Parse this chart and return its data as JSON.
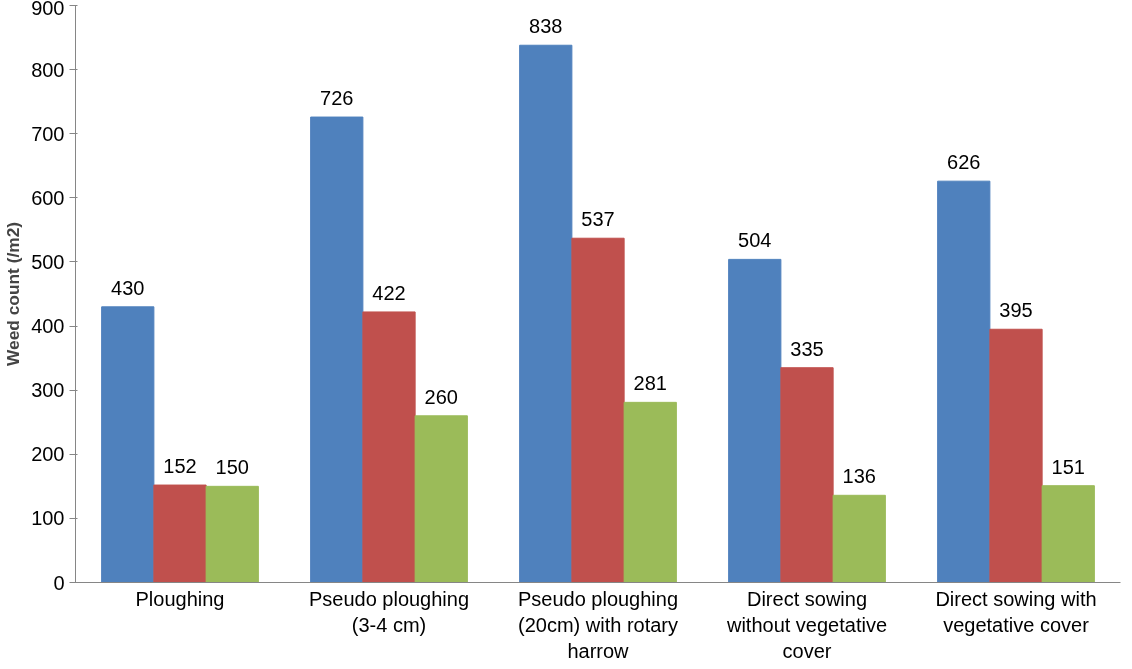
{
  "chart_data": {
    "type": "bar",
    "ylabel": "Weed count (/m2)",
    "categories": [
      "Ploughing",
      "Pseudo ploughing (3-4 cm)",
      "Pseudo ploughing (20cm) with rotary harrow",
      "Direct sowing without vegetative cover",
      "Direct sowing with vegetative cover"
    ],
    "series": [
      {
        "color": "#4f81bd",
        "values": [
          430,
          726,
          838,
          504,
          626
        ]
      },
      {
        "color": "#c0504d",
        "values": [
          152,
          422,
          537,
          335,
          395
        ]
      },
      {
        "color": "#9bbb59",
        "values": [
          150,
          260,
          281,
          136,
          151
        ]
      }
    ],
    "ylim": [
      0,
      900
    ],
    "yticks": [
      0,
      100,
      200,
      300,
      400,
      500,
      600,
      700,
      800,
      900
    ],
    "data_labels": true,
    "grid": false
  }
}
